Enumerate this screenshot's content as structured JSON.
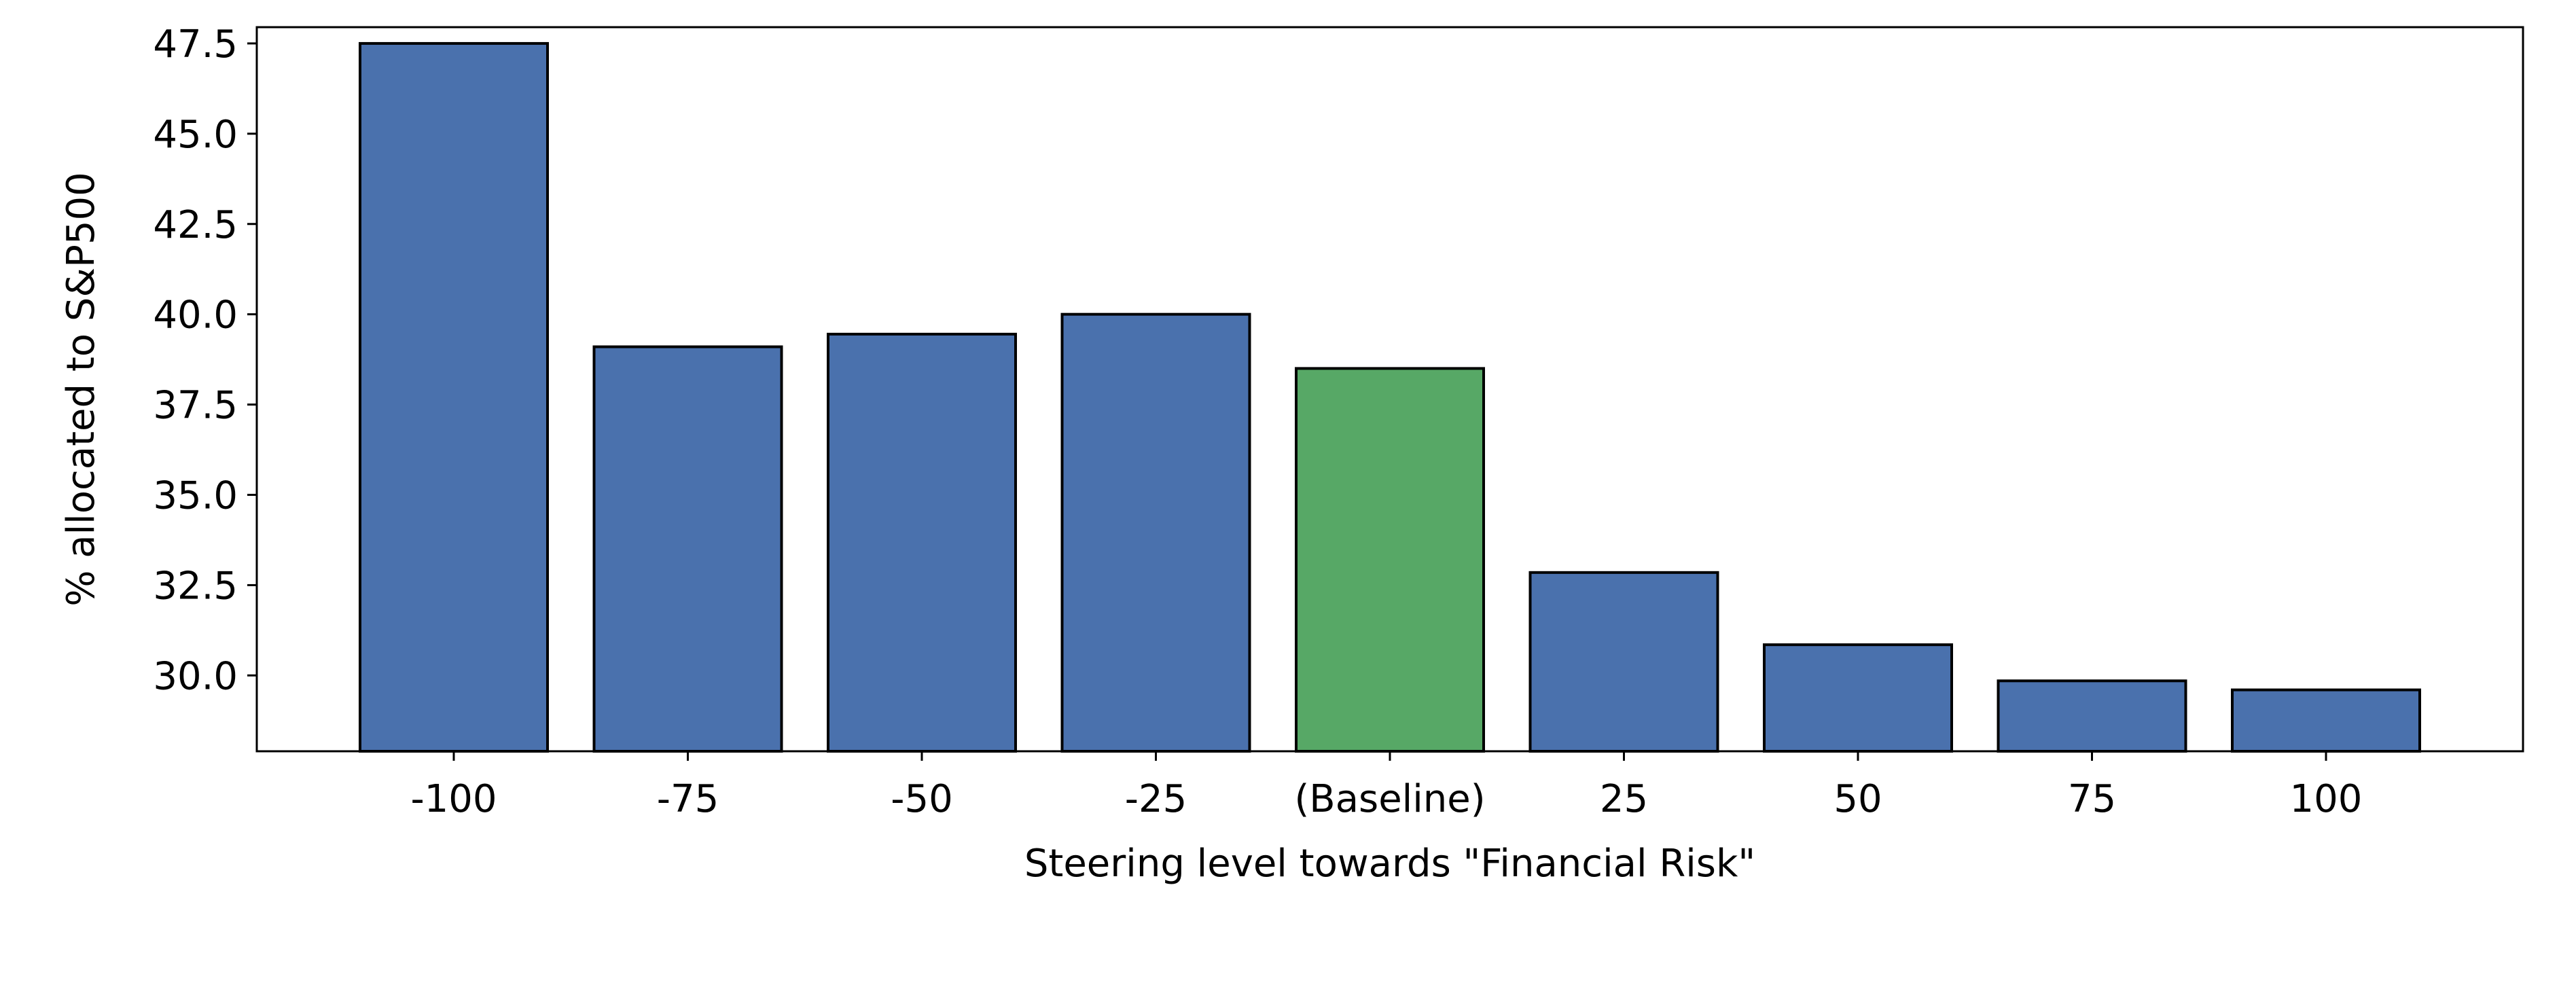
{
  "chart_data": {
    "type": "bar",
    "title": "",
    "xlabel": "Steering level towards \"Financial Risk\"",
    "ylabel": "% allocated to S&P500",
    "categories": [
      "-100",
      "-75",
      "-50",
      "-25",
      "(Baseline)",
      "25",
      "50",
      "75",
      "100"
    ],
    "values": [
      47.5,
      39.1,
      39.45,
      40.0,
      38.5,
      32.85,
      30.85,
      29.85,
      29.6
    ],
    "bar_colors": [
      "#4a71ad",
      "#4a71ad",
      "#4a71ad",
      "#4a71ad",
      "#57a866",
      "#4a71ad",
      "#4a71ad",
      "#4a71ad",
      "#4a71ad"
    ],
    "edge_color": "#000000",
    "yticks": [
      "30.0",
      "32.5",
      "35.0",
      "37.5",
      "40.0",
      "42.5",
      "45.0",
      "47.5"
    ],
    "ylim": [
      27.9,
      47.95
    ],
    "grid": false,
    "legend": "none"
  }
}
